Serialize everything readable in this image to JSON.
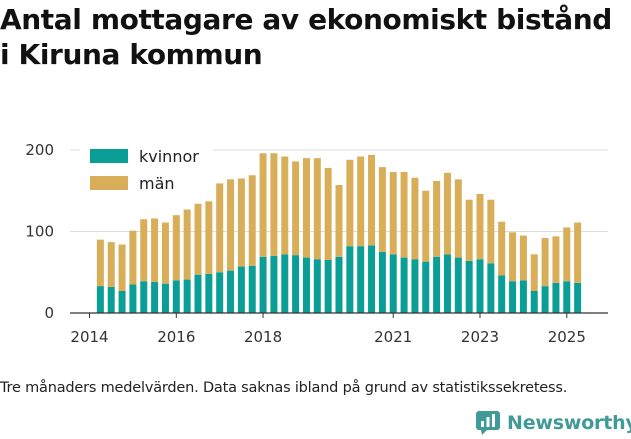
{
  "chart_data": {
    "type": "bar",
    "stacked": true,
    "title_lines": [
      "Antal mottagare av ekonomiskt bistånd",
      "i Kiruna kommun"
    ],
    "xlabel": "",
    "ylabel": "",
    "ylim": [
      0,
      200
    ],
    "y_ticks": [
      0,
      100,
      200
    ],
    "x_tick_labels": [
      "2014",
      "2016",
      "2018",
      "2021",
      "2023",
      "2025"
    ],
    "x_tick_positions": [
      2014.0,
      2016.0,
      2018.0,
      2021.0,
      2023.0,
      2025.0
    ],
    "x_range": [
      2013.55,
      2025.95
    ],
    "x": [
      2014.25,
      2014.5,
      2014.75,
      2015.0,
      2015.25,
      2015.5,
      2015.75,
      2016.0,
      2016.25,
      2016.5,
      2016.75,
      2017.0,
      2017.25,
      2017.5,
      2017.75,
      2018.0,
      2018.25,
      2018.5,
      2018.75,
      2019.0,
      2019.25,
      2019.5,
      2019.75,
      2020.0,
      2020.25,
      2020.5,
      2020.75,
      2021.0,
      2021.25,
      2021.5,
      2021.75,
      2022.0,
      2022.25,
      2022.5,
      2022.75,
      2023.0,
      2023.25,
      2023.5,
      2023.75,
      2024.0,
      2024.25,
      2024.5,
      2024.75,
      2025.0,
      2025.25
    ],
    "grid": "horizontal",
    "legend_position": "top-left",
    "series": [
      {
        "name": "kvinnor",
        "color": "#0a9e96",
        "values": [
          33,
          32,
          27,
          35,
          39,
          38,
          36,
          40,
          41,
          47,
          48,
          50,
          52,
          57,
          58,
          69,
          70,
          72,
          71,
          68,
          66,
          65,
          69,
          82,
          82,
          83,
          75,
          72,
          68,
          66,
          63,
          69,
          72,
          68,
          64,
          66,
          61,
          46,
          39,
          40,
          27,
          33,
          37,
          39,
          37
        ]
      },
      {
        "name": "män",
        "color": "#d9ae58",
        "values": [
          57,
          55,
          57,
          66,
          76,
          78,
          75,
          80,
          86,
          87,
          89,
          109,
          112,
          108,
          111,
          127,
          126,
          120,
          115,
          122,
          124,
          113,
          88,
          106,
          110,
          111,
          104,
          101,
          105,
          100,
          87,
          93,
          100,
          96,
          75,
          80,
          78,
          66,
          60,
          55,
          45,
          59,
          57,
          66,
          74
        ]
      }
    ],
    "footnote": "Tre månaders medelvärden. Data saknas ibland på grund av statistikssekretess."
  },
  "brand": {
    "name": "Newsworthy",
    "icon": "newsworthy-logo-icon",
    "color": "#3f9a98"
  }
}
